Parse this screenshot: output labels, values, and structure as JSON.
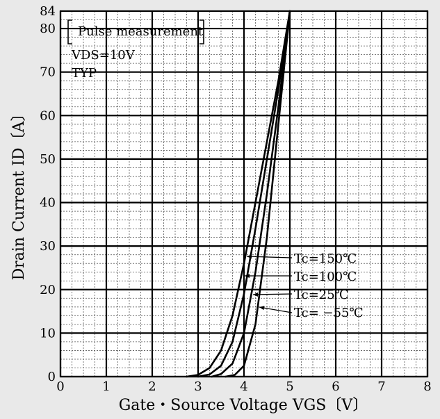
{
  "chart_data": {
    "type": "line",
    "title": "",
    "xlabel": "Gate・Source Voltage  VGS〔V〕",
    "ylabel": "Drain Current  ID〔A〕",
    "xlim": [
      0,
      8
    ],
    "ylim": [
      0,
      84
    ],
    "x_ticks": [
      0,
      1,
      2,
      3,
      4,
      5,
      6,
      7,
      8
    ],
    "y_ticks": [
      0,
      10,
      20,
      30,
      40,
      50,
      60,
      70,
      80,
      84
    ],
    "grid": true,
    "minor_grid": true,
    "series": [
      {
        "name": "Tc=150℃",
        "x": [
          2.75,
          3.0,
          3.25,
          3.5,
          3.75,
          4.0,
          4.25,
          4.5,
          4.75,
          5.0
        ],
        "y": [
          0,
          0.4,
          2.0,
          6.0,
          14.0,
          26.0,
          40.0,
          54.0,
          68.0,
          84.0
        ]
      },
      {
        "name": "Tc=100℃",
        "x": [
          3.0,
          3.25,
          3.5,
          3.75,
          4.0,
          4.25,
          4.5,
          4.75,
          5.0
        ],
        "y": [
          0,
          0.5,
          2.5,
          8.0,
          19.0,
          34.0,
          50.0,
          66.0,
          84.0
        ]
      },
      {
        "name": "Tc=25℃",
        "x": [
          3.3,
          3.5,
          3.75,
          4.0,
          4.25,
          4.5,
          4.75,
          5.0
        ],
        "y": [
          0,
          0.6,
          3.0,
          10.0,
          24.0,
          42.0,
          62.0,
          84.0
        ]
      },
      {
        "name": "Tc= −55℃",
        "x": [
          3.6,
          3.8,
          4.0,
          4.25,
          4.5,
          4.75,
          5.0
        ],
        "y": [
          0,
          0.4,
          2.5,
          12.0,
          32.0,
          58.0,
          84.0
        ]
      }
    ],
    "annotations": {
      "box": "Pulse measurement",
      "vds": "VDS=10V",
      "typ": "TYP"
    }
  }
}
